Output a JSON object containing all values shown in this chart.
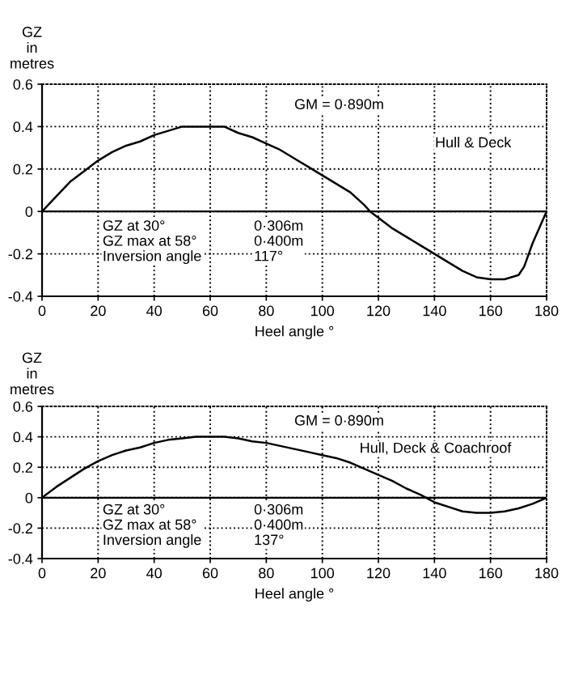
{
  "chart_data": [
    {
      "type": "line",
      "ylabel": "GZ\nin\nmetres",
      "xlabel": "Heel angle °",
      "xlim": [
        0,
        180
      ],
      "xticks": [
        0,
        20,
        40,
        60,
        80,
        100,
        120,
        140,
        160,
        180
      ],
      "ylim": [
        -0.4,
        0.6
      ],
      "yticks": [
        -0.4,
        -0.2,
        0,
        0.2,
        0.4,
        0.6
      ],
      "grid": true,
      "marker": "none",
      "line_style": "solid",
      "ref_lines": [
        {
          "axis": "y",
          "value": 0,
          "color": "#000000",
          "line_style": "solid"
        }
      ],
      "annotations": [
        "GM = 0·890m",
        "Hull & Deck",
        "GZ at 30°\nGZ max at 58°\nInversion angle",
        "0·306m\n0·400m\n117°"
      ],
      "x": [
        0,
        5,
        10,
        15,
        20,
        25,
        30,
        35,
        40,
        45,
        50,
        55,
        58,
        60,
        65,
        70,
        75,
        80,
        85,
        90,
        95,
        100,
        105,
        110,
        115,
        117,
        120,
        125,
        130,
        135,
        140,
        145,
        150,
        155,
        160,
        165,
        170,
        172,
        175,
        180
      ],
      "series": [
        {
          "color": "#000000",
          "values": [
            0,
            0.07,
            0.14,
            0.19,
            0.24,
            0.28,
            0.31,
            0.33,
            0.36,
            0.38,
            0.4,
            0.4,
            0.4,
            0.4,
            0.4,
            0.37,
            0.35,
            0.32,
            0.29,
            0.25,
            0.21,
            0.17,
            0.13,
            0.09,
            0.03,
            0,
            -0.03,
            -0.08,
            -0.12,
            -0.16,
            -0.2,
            -0.24,
            -0.28,
            -0.31,
            -0.32,
            -0.32,
            -0.3,
            -0.26,
            -0.15,
            0
          ]
        }
      ]
    },
    {
      "type": "line",
      "ylabel": "GZ\nin\nmetres",
      "xlabel": "Heel angle °",
      "xlim": [
        0,
        180
      ],
      "xticks": [
        0,
        20,
        40,
        60,
        80,
        100,
        120,
        140,
        160,
        180
      ],
      "ylim": [
        -0.4,
        0.6
      ],
      "yticks": [
        -0.4,
        -0.2,
        0,
        0.2,
        0.4,
        0.6
      ],
      "grid": true,
      "marker": "none",
      "line_style": "solid",
      "ref_lines": [
        {
          "axis": "y",
          "value": 0,
          "color": "#000000",
          "line_style": "solid"
        }
      ],
      "annotations": [
        "GM = 0·890m",
        "Hull, Deck & Coachroof",
        "GZ at 30°\nGZ max at 58°\nInversion angle",
        "0·306m\n0·400m\n137°"
      ],
      "x": [
        0,
        5,
        10,
        15,
        20,
        25,
        30,
        35,
        40,
        45,
        50,
        55,
        60,
        65,
        70,
        75,
        80,
        85,
        90,
        95,
        100,
        105,
        110,
        115,
        120,
        125,
        130,
        135,
        137,
        140,
        145,
        150,
        155,
        160,
        165,
        170,
        175,
        180
      ],
      "series": [
        {
          "color": "#000000",
          "values": [
            0,
            0.07,
            0.13,
            0.19,
            0.24,
            0.28,
            0.31,
            0.33,
            0.36,
            0.38,
            0.39,
            0.4,
            0.4,
            0.4,
            0.39,
            0.37,
            0.36,
            0.34,
            0.32,
            0.3,
            0.28,
            0.26,
            0.23,
            0.19,
            0.15,
            0.11,
            0.06,
            0.02,
            0,
            -0.03,
            -0.06,
            -0.09,
            -0.1,
            -0.1,
            -0.09,
            -0.07,
            -0.04,
            0
          ]
        }
      ]
    }
  ]
}
